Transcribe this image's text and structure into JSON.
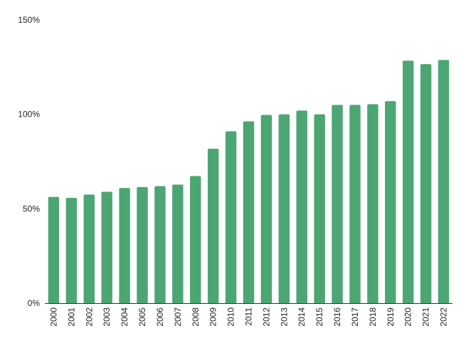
{
  "chart_data": {
    "type": "bar",
    "title": "",
    "xlabel": "",
    "ylabel": "",
    "ylim": [
      0,
      150
    ],
    "y_ticks": [
      {
        "value": 0,
        "label": "0%"
      },
      {
        "value": 50,
        "label": "50%"
      },
      {
        "value": 100,
        "label": "100%"
      },
      {
        "value": 150,
        "label": "150%"
      }
    ],
    "grid": false,
    "legend": "none",
    "bar_color": "#4CA673",
    "axis_color": "#333333",
    "text_color": "#222222",
    "categories": [
      "2000",
      "2001",
      "2002",
      "2003",
      "2004",
      "2005",
      "2006",
      "2007",
      "2008",
      "2009",
      "2010",
      "2011",
      "2012",
      "2013",
      "2014",
      "2015",
      "2016",
      "2017",
      "2018",
      "2019",
      "2020",
      "2021",
      "2022"
    ],
    "values": [
      56.3,
      55.8,
      57.5,
      59.0,
      61.0,
      61.5,
      62.0,
      62.8,
      67.3,
      81.8,
      91.0,
      96.3,
      99.7,
      100.0,
      102.0,
      100.0,
      105.0,
      105.0,
      105.4,
      107.0,
      128.4,
      126.6,
      128.8
    ]
  }
}
